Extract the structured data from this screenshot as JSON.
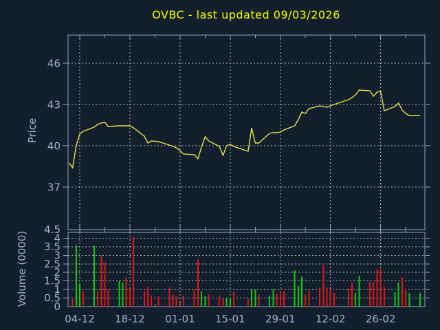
{
  "chart_data": {
    "type": "line+bar",
    "title": "OVBC - last updated 09/03/2026",
    "grid": "dotted",
    "colors": {
      "background": "#131f2d",
      "frame": "#8aa8c8",
      "grid": "#b4bac0",
      "text": "#9cb6d0",
      "title": "#fbfb00",
      "price_line": "#e9e24a",
      "volume_up": "#10cc10",
      "volume_down": "#e41414"
    },
    "x_axis": {
      "xlim": [
        0,
        98
      ],
      "labels": [
        {
          "text": "04-12",
          "day": 3
        },
        {
          "text": "18-12",
          "day": 17
        },
        {
          "text": "01-01",
          "day": 31
        },
        {
          "text": "15-01",
          "day": 45
        },
        {
          "text": "29-01",
          "day": 59
        },
        {
          "text": "12-02",
          "day": 73
        },
        {
          "text": "26-02",
          "day": 87
        }
      ],
      "minor_tick_days": [
        10,
        24,
        38,
        52,
        66,
        80,
        94
      ]
    },
    "price_panel": {
      "ylabel": "Price",
      "yticks": [
        37,
        40,
        43,
        46
      ],
      "ylim": [
        33.9,
        48.05
      ],
      "points": [
        [
          0,
          38.75
        ],
        [
          1,
          38.4
        ],
        [
          2,
          40.0
        ],
        [
          3,
          40.85
        ],
        [
          4,
          41.05
        ],
        [
          7,
          41.35
        ],
        [
          8,
          41.55
        ],
        [
          9,
          41.65
        ],
        [
          10,
          41.7
        ],
        [
          11,
          41.4
        ],
        [
          14,
          41.45
        ],
        [
          15,
          41.45
        ],
        [
          16,
          41.45
        ],
        [
          17,
          41.45
        ],
        [
          18,
          41.3
        ],
        [
          21,
          40.7
        ],
        [
          22,
          40.2
        ],
        [
          23,
          40.35
        ],
        [
          25,
          40.3
        ],
        [
          28,
          40.05
        ],
        [
          29,
          39.95
        ],
        [
          30,
          39.85
        ],
        [
          32,
          39.4
        ],
        [
          35,
          39.35
        ],
        [
          36,
          39.05
        ],
        [
          37,
          39.9
        ],
        [
          38,
          40.65
        ],
        [
          39,
          40.35
        ],
        [
          42,
          39.95
        ],
        [
          43,
          39.3
        ],
        [
          44,
          40.0
        ],
        [
          45,
          40.1
        ],
        [
          46,
          39.95
        ],
        [
          50,
          39.6
        ],
        [
          51,
          41.3
        ],
        [
          52,
          40.2
        ],
        [
          53,
          40.2
        ],
        [
          56,
          40.9
        ],
        [
          57,
          40.95
        ],
        [
          58,
          40.95
        ],
        [
          59,
          41.0
        ],
        [
          60,
          41.15
        ],
        [
          63,
          41.45
        ],
        [
          64,
          41.9
        ],
        [
          65,
          42.45
        ],
        [
          66,
          42.35
        ],
        [
          67,
          42.7
        ],
        [
          70,
          42.9
        ],
        [
          71,
          42.85
        ],
        [
          72,
          42.8
        ],
        [
          73,
          42.9
        ],
        [
          74,
          43.0
        ],
        [
          78,
          43.35
        ],
        [
          79,
          43.5
        ],
        [
          80,
          43.7
        ],
        [
          81,
          44.05
        ],
        [
          84,
          44.0
        ],
        [
          85,
          43.6
        ],
        [
          86,
          43.9
        ],
        [
          87,
          43.95
        ],
        [
          88,
          42.55
        ],
        [
          91,
          42.85
        ],
        [
          92,
          43.1
        ],
        [
          93,
          42.6
        ],
        [
          94,
          42.35
        ],
        [
          95,
          42.2
        ],
        [
          98,
          42.2
        ]
      ]
    },
    "volume_panel": {
      "ylabel": "Volume (0000)",
      "yticks": [
        0,
        0.5,
        1,
        1.5,
        2,
        2.5,
        3,
        3.5,
        4,
        4.5
      ],
      "gridlines": [
        0.5,
        1,
        1.5,
        2,
        2.5,
        3,
        3.5,
        4
      ],
      "ylim": [
        0,
        4.34
      ],
      "bars": [
        [
          1,
          0.55,
          "down"
        ],
        [
          2,
          3.6,
          "up"
        ],
        [
          3,
          1.35,
          "up"
        ],
        [
          4,
          0.9,
          "down"
        ],
        [
          7,
          3.55,
          "up"
        ],
        [
          8,
          0.9,
          "down"
        ],
        [
          9,
          3.0,
          "down"
        ],
        [
          10,
          2.6,
          "down"
        ],
        [
          11,
          1.0,
          "down"
        ],
        [
          14,
          1.5,
          "up"
        ],
        [
          15,
          1.4,
          "up"
        ],
        [
          16,
          1.7,
          "down"
        ],
        [
          17,
          1.05,
          "down"
        ],
        [
          18,
          4.05,
          "down"
        ],
        [
          21,
          0.9,
          "down"
        ],
        [
          22,
          1.15,
          "down"
        ],
        [
          23,
          0.65,
          "down"
        ],
        [
          25,
          0.6,
          "down"
        ],
        [
          28,
          1.1,
          "down"
        ],
        [
          29,
          0.7,
          "down"
        ],
        [
          30,
          0.6,
          "down"
        ],
        [
          32,
          0.65,
          "down"
        ],
        [
          35,
          1.0,
          "down"
        ],
        [
          36,
          2.75,
          "down"
        ],
        [
          37,
          0.9,
          "up"
        ],
        [
          38,
          0.6,
          "up"
        ],
        [
          39,
          0.7,
          "down"
        ],
        [
          42,
          0.65,
          "down"
        ],
        [
          43,
          0.5,
          "down"
        ],
        [
          44,
          0.5,
          "up"
        ],
        [
          45,
          0.5,
          "up"
        ],
        [
          46,
          0.85,
          "down"
        ],
        [
          50,
          0.45,
          "down"
        ],
        [
          51,
          1.05,
          "up"
        ],
        [
          52,
          1.0,
          "up"
        ],
        [
          53,
          0.7,
          "down"
        ],
        [
          56,
          0.65,
          "up"
        ],
        [
          57,
          1.0,
          "up"
        ],
        [
          58,
          0.75,
          "down"
        ],
        [
          59,
          0.9,
          "down"
        ],
        [
          60,
          0.9,
          "down"
        ],
        [
          63,
          2.1,
          "up"
        ],
        [
          64,
          1.2,
          "up"
        ],
        [
          65,
          1.75,
          "up"
        ],
        [
          66,
          0.7,
          "down"
        ],
        [
          67,
          0.95,
          "down"
        ],
        [
          70,
          1.1,
          "down"
        ],
        [
          71,
          2.4,
          "down"
        ],
        [
          72,
          1.1,
          "down"
        ],
        [
          73,
          1.05,
          "down"
        ],
        [
          74,
          0.8,
          "down"
        ],
        [
          78,
          1.05,
          "down"
        ],
        [
          79,
          1.4,
          "down"
        ],
        [
          80,
          0.8,
          "up"
        ],
        [
          81,
          1.8,
          "up"
        ],
        [
          84,
          1.45,
          "down"
        ],
        [
          85,
          1.45,
          "down"
        ],
        [
          86,
          2.2,
          "down"
        ],
        [
          87,
          2.2,
          "down"
        ],
        [
          88,
          1.15,
          "down"
        ],
        [
          91,
          0.85,
          "up"
        ],
        [
          92,
          1.4,
          "up"
        ],
        [
          93,
          1.7,
          "down"
        ],
        [
          94,
          1.05,
          "down"
        ],
        [
          95,
          0.8,
          "up"
        ],
        [
          98,
          0.8,
          "up"
        ]
      ]
    }
  }
}
